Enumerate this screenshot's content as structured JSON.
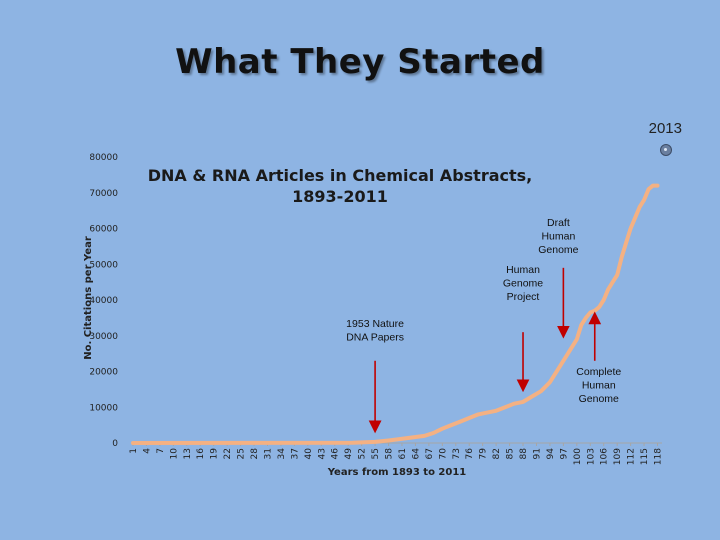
{
  "slide": {
    "title": "What They Started",
    "year_label": "2013"
  },
  "chart_data": {
    "type": "line",
    "title": "DNA & RNA Articles in Chemical Abstracts, 1893-2011",
    "title_lines": [
      "DNA & RNA Articles in Chemical Abstracts,",
      "1893-2011"
    ],
    "xlabel": "Years from 1893 to 2011",
    "ylabel": "No. Citations per Year",
    "ylim": [
      0,
      80000
    ],
    "y_ticks": [
      0,
      10000,
      20000,
      30000,
      40000,
      50000,
      60000,
      70000,
      80000
    ],
    "xlim": [
      1,
      119
    ],
    "x_ticks": [
      1,
      4,
      7,
      10,
      13,
      16,
      19,
      22,
      25,
      28,
      31,
      34,
      37,
      40,
      43,
      46,
      49,
      52,
      55,
      58,
      61,
      64,
      67,
      70,
      73,
      76,
      79,
      82,
      85,
      88,
      91,
      94,
      97,
      100,
      103,
      106,
      109,
      112,
      115,
      118
    ],
    "grid": false,
    "line_color": "#f4b183",
    "series": [
      {
        "x": [
          1,
          50,
          55,
          58,
          60,
          63,
          66,
          68,
          70,
          72,
          74,
          76,
          78,
          80,
          82,
          84,
          86,
          88,
          90,
          92,
          94,
          96,
          98,
          100,
          101,
          102,
          103,
          104,
          105,
          106,
          107,
          108,
          109,
          110,
          111,
          112,
          113,
          114,
          115,
          116,
          117,
          118
        ],
        "y": [
          0,
          50,
          300,
          700,
          1000,
          1500,
          2000,
          2800,
          4000,
          5000,
          6000,
          7000,
          8000,
          8500,
          9000,
          10000,
          11000,
          11500,
          13000,
          14500,
          17000,
          21000,
          25000,
          29000,
          33000,
          35000,
          36500,
          37000,
          38000,
          40000,
          43000,
          45000,
          47000,
          52000,
          56000,
          60000,
          63000,
          66000,
          68000,
          71000,
          72000,
          72000
        ]
      }
    ],
    "annotations": [
      {
        "lines": [
          "1953 Nature",
          "DNA Papers"
        ],
        "x": 55,
        "arrow_from_y": 23000,
        "arrow_to_y": 4500,
        "arrow_color": "#c00000"
      },
      {
        "lines": [
          "Human",
          "Genome",
          "Project"
        ],
        "x": 88,
        "arrow_from_y": 31000,
        "arrow_to_y": 16000,
        "arrow_color": "#c00000"
      },
      {
        "lines": [
          "Draft",
          "Human",
          "Genome"
        ],
        "x": 97,
        "arrow_from_y": 49000,
        "arrow_to_y": 31000,
        "arrow_color": "#c00000"
      },
      {
        "lines": [
          "Complete",
          "Human",
          "Genome"
        ],
        "x": 104,
        "arrow_from_y": 23000,
        "arrow_to_y": 35000,
        "arrow_color": "#c00000"
      }
    ]
  }
}
